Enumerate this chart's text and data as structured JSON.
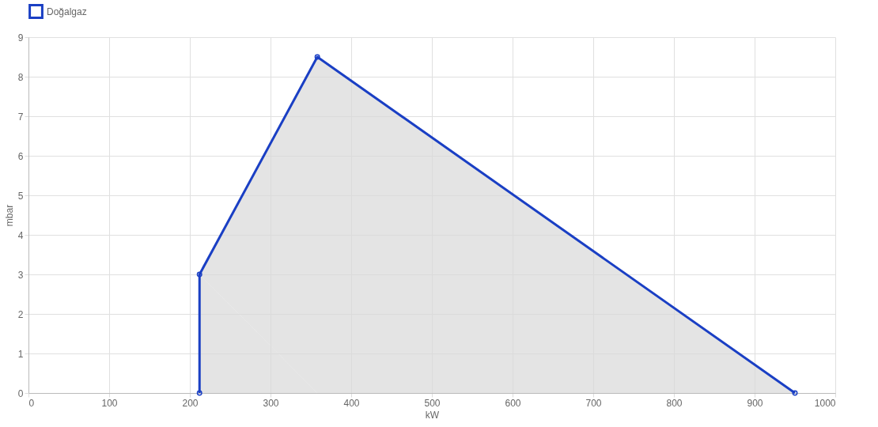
{
  "chart_data": {
    "type": "area",
    "xlabel": "kW",
    "ylabel": "mbar",
    "x": [
      212,
      212,
      358,
      950
    ],
    "series": [
      {
        "name": "Doğalgaz",
        "color": "#1a3fc4",
        "values": [
          0,
          3,
          8.5,
          0
        ]
      }
    ],
    "xlim": [
      0,
      1000
    ],
    "xticks": [
      0,
      100,
      200,
      300,
      400,
      500,
      600,
      700,
      800,
      900,
      1000
    ],
    "ylim": [
      0,
      9
    ],
    "yticks": [
      0,
      1,
      2,
      3,
      4,
      5,
      6,
      7,
      8,
      9
    ],
    "grid": true,
    "legend": "top",
    "marker": "circle",
    "line_style": "solid"
  }
}
